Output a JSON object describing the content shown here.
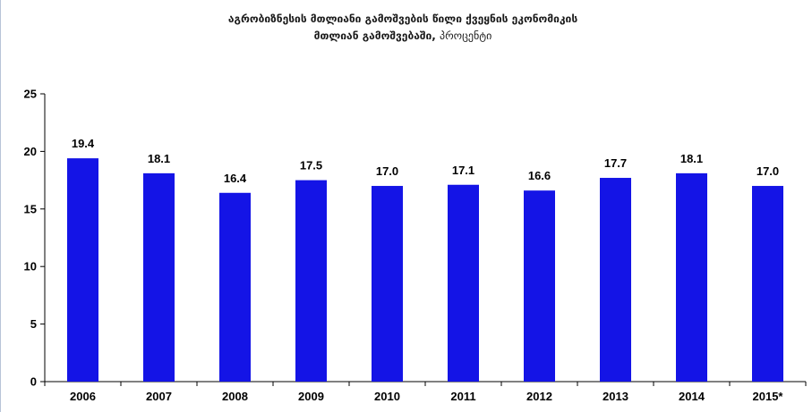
{
  "chart_data": {
    "type": "bar",
    "title_line1": "აგრობიზნესის მთლიანი გამოშვების წილი ქვეყნის ეკონომიკის",
    "title_line2": "მთლიან გამოშვებაში,",
    "title_unit": "პროცენტი",
    "categories": [
      "2006",
      "2007",
      "2008",
      "2009",
      "2010",
      "2011",
      "2012",
      "2013",
      "2014",
      "2015*"
    ],
    "values": [
      19.4,
      18.1,
      16.4,
      17.5,
      17.0,
      17.1,
      16.6,
      17.7,
      18.1,
      17.0
    ],
    "value_labels": [
      "19.4",
      "18.1",
      "16.4",
      "17.5",
      "17.0",
      "17.1",
      "16.6",
      "17.7",
      "18.1",
      "17.0"
    ],
    "ylim": [
      0,
      25
    ],
    "yticks": [
      0,
      5,
      10,
      15,
      20,
      25
    ],
    "bar_color": "#1414e6",
    "grid": false,
    "legend": "none",
    "xlabel": "",
    "ylabel": ""
  }
}
